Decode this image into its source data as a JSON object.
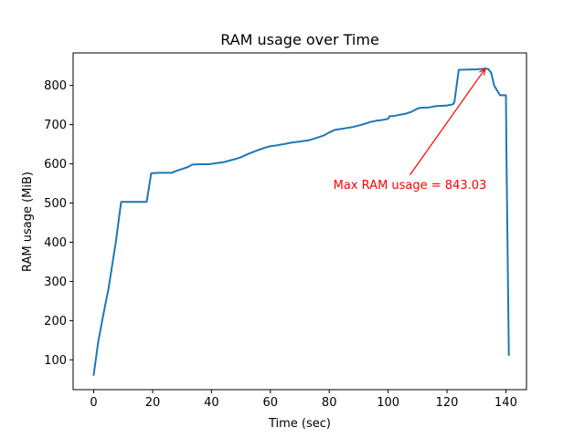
{
  "chart_data": {
    "type": "line",
    "title": "RAM usage over Time",
    "xlabel": "Time (sec)",
    "ylabel": "RAM usage (MiB)",
    "xlim": [
      -7,
      147
    ],
    "ylim": [
      24,
      883
    ],
    "xticks": [
      0,
      20,
      40,
      60,
      80,
      100,
      120,
      140
    ],
    "yticks": [
      100,
      200,
      300,
      400,
      500,
      600,
      700,
      800
    ],
    "grid": false,
    "line_color": "#1f77b4",
    "series": [
      {
        "x": [
          0,
          1.5,
          3,
          5,
          7.5,
          9.3,
          12,
          15,
          18,
          19.5,
          22,
          26.5,
          28,
          30,
          32,
          33.5,
          36,
          39,
          41,
          44,
          46,
          48,
          50,
          52,
          55,
          58,
          60,
          62,
          65,
          67,
          70,
          73,
          76,
          78,
          80,
          82,
          84,
          88,
          92,
          94,
          96,
          98,
          100,
          100.5,
          102,
          103,
          106,
          108,
          110,
          111,
          114,
          116,
          118,
          120,
          122,
          122.5,
          124,
          130,
          133,
          134,
          135,
          136,
          138,
          139,
          140,
          140.2,
          141
        ],
        "y": [
          62,
          145,
          205,
          280,
          400,
          503,
          503,
          503,
          503,
          576,
          577,
          577,
          582,
          587,
          592,
          598,
          599,
          599,
          601,
          604,
          608,
          612,
          617,
          624,
          633,
          641,
          645,
          647,
          651,
          654,
          657,
          660,
          667,
          672,
          680,
          687,
          689,
          694,
          702,
          707,
          710,
          712,
          715,
          722,
          722,
          724,
          728,
          733,
          741,
          743,
          744,
          747,
          748,
          749,
          752,
          757,
          840,
          841,
          843,
          842,
          832,
          800,
          775,
          775,
          775,
          620,
          113
        ]
      }
    ],
    "annotation": {
      "text": "Max RAM usage = 843.03",
      "x": 133,
      "y": 843.03,
      "text_x": 83.5,
      "text_y": 546,
      "color": "#ff0000"
    }
  }
}
